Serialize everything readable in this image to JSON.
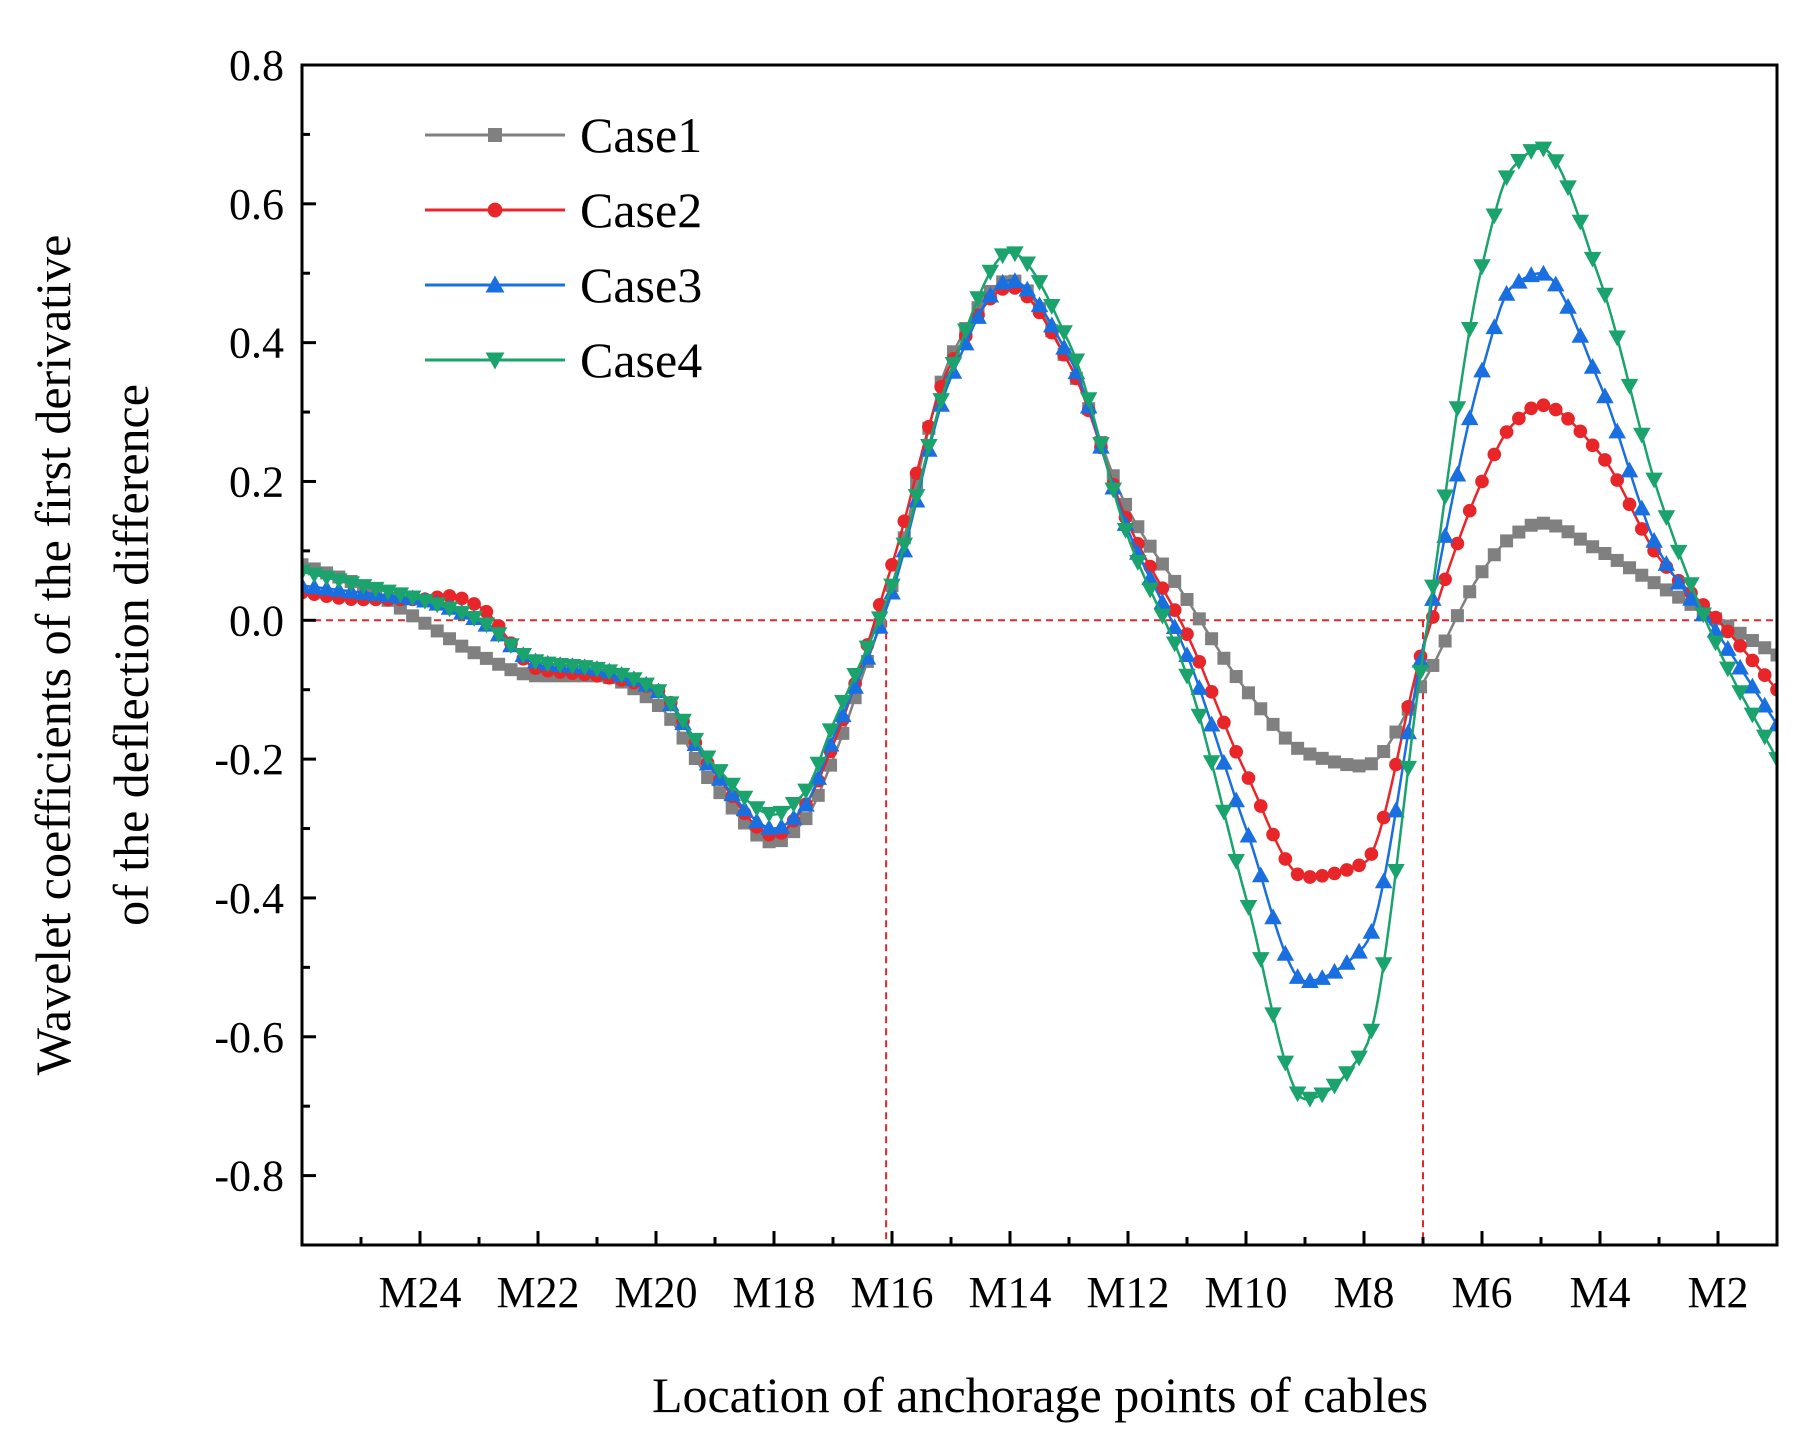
{
  "chart_data": {
    "type": "line",
    "title": "",
    "xlabel": "Location of anchorage points of cables",
    "ylabel_lines": [
      "Wavelet coefficients of the first  derivative",
      "of the deflection difference"
    ],
    "xlim": [
      -0.5,
      24.5
    ],
    "ylim": [
      -0.9,
      0.8
    ],
    "yticks": [
      -0.8,
      -0.6,
      -0.4,
      -0.2,
      0.0,
      0.2,
      0.4,
      0.6,
      0.8
    ],
    "ytick_labels": [
      "-0.8",
      "-0.6",
      "-0.4",
      "-0.2",
      "0.0",
      "0.2",
      "0.4",
      "0.6",
      "0.8"
    ],
    "xticks": [
      1.5,
      3.5,
      5.5,
      7.5,
      9.5,
      11.5,
      13.5,
      15.5,
      17.5,
      19.5,
      21.5,
      23.5
    ],
    "xtick_labels": [
      "M24",
      "M22",
      "M20",
      "M18",
      "M16",
      "M14",
      "M12",
      "M10",
      "M8",
      "M6",
      "M4",
      "M2"
    ],
    "x_minor_ticks": [
      0.5,
      2.5,
      4.5,
      6.5,
      8.5,
      10.5,
      12.5,
      14.5,
      16.5,
      18.5,
      20.5,
      22.5
    ],
    "reference_lines": {
      "y": 0.0,
      "x": [
        9.4,
        18.5
      ],
      "color": "#e8262a"
    },
    "legend_position": "top-left",
    "series": [
      {
        "name": "Case1",
        "color": "#808080",
        "marker": "square",
        "x": [
          -0.5,
          0.5,
          1.5,
          2.5,
          3.5,
          4.5,
          5.5,
          6.5,
          7.5,
          8.0,
          8.5,
          9.0,
          9.5,
          10.5,
          11.5,
          12.5,
          13.5,
          14.5,
          15.5,
          16.5,
          17.5,
          18.5,
          19.5,
          20.0,
          20.5,
          21.5,
          22.5,
          23.5,
          24.5
        ],
        "y": [
          0.08,
          0.05,
          0.0,
          -0.05,
          -0.08,
          -0.08,
          -0.12,
          -0.24,
          -0.32,
          -0.29,
          -0.2,
          -0.08,
          0.05,
          0.38,
          0.49,
          0.37,
          0.16,
          0.03,
          -0.1,
          -0.19,
          -0.21,
          -0.09,
          0.07,
          0.12,
          0.14,
          0.1,
          0.05,
          0.0,
          -0.05
        ]
      },
      {
        "name": "Case2",
        "color": "#e8262a",
        "marker": "circle",
        "x": [
          -0.5,
          0.5,
          1.5,
          2.0,
          2.5,
          3.5,
          4.5,
          5.5,
          6.5,
          7.5,
          8.0,
          8.5,
          9.5,
          10.5,
          11.5,
          12.5,
          13.5,
          14.5,
          15.5,
          16.5,
          17.5,
          18.5,
          19.5,
          20.0,
          20.5,
          21.5,
          22.5,
          23.5,
          24.5
        ],
        "y": [
          0.04,
          0.03,
          0.03,
          0.035,
          0.02,
          -0.07,
          -0.08,
          -0.1,
          -0.22,
          -0.31,
          -0.27,
          -0.18,
          0.08,
          0.37,
          0.48,
          0.37,
          0.14,
          -0.02,
          -0.22,
          -0.37,
          -0.35,
          -0.04,
          0.2,
          0.28,
          0.31,
          0.24,
          0.09,
          0.0,
          -0.1
        ]
      },
      {
        "name": "Case3",
        "color": "#1a6fe0",
        "marker": "triangle-up",
        "x": [
          -0.5,
          0.5,
          1.5,
          2.5,
          3.5,
          4.5,
          5.5,
          6.5,
          7.5,
          8.0,
          8.5,
          9.5,
          10.5,
          11.5,
          12.5,
          13.5,
          14.5,
          15.5,
          16.5,
          17.5,
          18.5,
          19.5,
          20.0,
          20.5,
          21.5,
          22.5,
          23.5,
          24.5
        ],
        "y": [
          0.05,
          0.04,
          0.03,
          0.0,
          -0.06,
          -0.07,
          -0.1,
          -0.22,
          -0.3,
          -0.27,
          -0.17,
          0.04,
          0.35,
          0.49,
          0.38,
          0.13,
          -0.05,
          -0.3,
          -0.52,
          -0.47,
          -0.04,
          0.36,
          0.48,
          0.5,
          0.34,
          0.1,
          -0.02,
          -0.15
        ]
      },
      {
        "name": "Case4",
        "color": "#1aa36c",
        "marker": "triangle-down",
        "x": [
          -0.5,
          0.5,
          1.5,
          2.5,
          3.5,
          4.5,
          5.5,
          6.5,
          7.5,
          8.0,
          8.5,
          9.5,
          10.5,
          11.5,
          12.5,
          13.5,
          14.5,
          15.5,
          16.5,
          17.5,
          18.5,
          19.5,
          20.0,
          20.5,
          21.5,
          22.5,
          23.5,
          24.5
        ],
        "y": [
          0.07,
          0.05,
          0.03,
          0.0,
          -0.06,
          -0.07,
          -0.1,
          -0.21,
          -0.28,
          -0.25,
          -0.15,
          0.05,
          0.36,
          0.53,
          0.4,
          0.12,
          -0.08,
          -0.4,
          -0.69,
          -0.62,
          -0.05,
          0.51,
          0.65,
          0.68,
          0.49,
          0.18,
          -0.04,
          -0.2
        ]
      }
    ]
  }
}
